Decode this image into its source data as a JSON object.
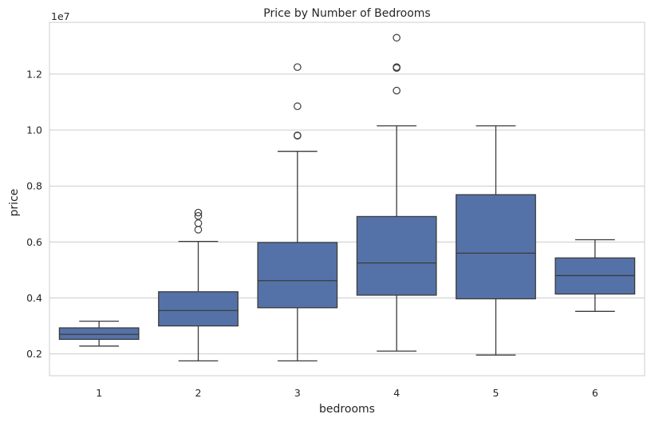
{
  "chart_data": {
    "type": "box",
    "title": "Price by Number of Bedrooms",
    "xlabel": "bedrooms",
    "ylabel": "price",
    "y_scale_label": "1e7",
    "y_scale": 10000000,
    "ylim": [
      1.22,
      13.85
    ],
    "y_ticks": [
      0.2,
      0.4,
      0.6,
      0.8,
      1.0,
      1.2
    ],
    "y_tick_labels": [
      "0.2",
      "0.4",
      "0.6",
      "0.8",
      "1.0",
      "1.2"
    ],
    "grid": true,
    "box_color": "#5572a8",
    "line_color": "#3b3b3b",
    "grid_color": "#cccccc",
    "categories": [
      "1",
      "2",
      "3",
      "4",
      "5",
      "6"
    ],
    "boxes": [
      {
        "category": "1",
        "whisker_low": 2.28,
        "q1": 2.52,
        "median": 2.7,
        "q3": 2.93,
        "whisker_high": 3.17,
        "outliers": []
      },
      {
        "category": "2",
        "whisker_low": 1.75,
        "q1": 3.0,
        "median": 3.55,
        "q3": 4.22,
        "whisker_high": 6.02,
        "outliers": [
          6.44,
          6.67,
          6.93,
          7.05
        ]
      },
      {
        "category": "3",
        "whisker_low": 1.75,
        "q1": 3.65,
        "median": 4.62,
        "q3": 5.98,
        "whisker_high": 9.24,
        "outliers": [
          9.8,
          9.81,
          10.85,
          12.25
        ]
      },
      {
        "category": "4",
        "whisker_low": 2.1,
        "q1": 4.1,
        "median": 5.25,
        "q3": 6.91,
        "whisker_high": 10.15,
        "outliers": [
          11.41,
          12.22,
          12.25,
          13.3
        ]
      },
      {
        "category": "5",
        "whisker_low": 1.96,
        "q1": 3.97,
        "median": 5.6,
        "q3": 7.69,
        "whisker_high": 10.15,
        "outliers": []
      },
      {
        "category": "6",
        "whisker_low": 3.52,
        "q1": 4.14,
        "median": 4.8,
        "q3": 5.43,
        "whisker_high": 6.08,
        "outliers": []
      }
    ]
  }
}
